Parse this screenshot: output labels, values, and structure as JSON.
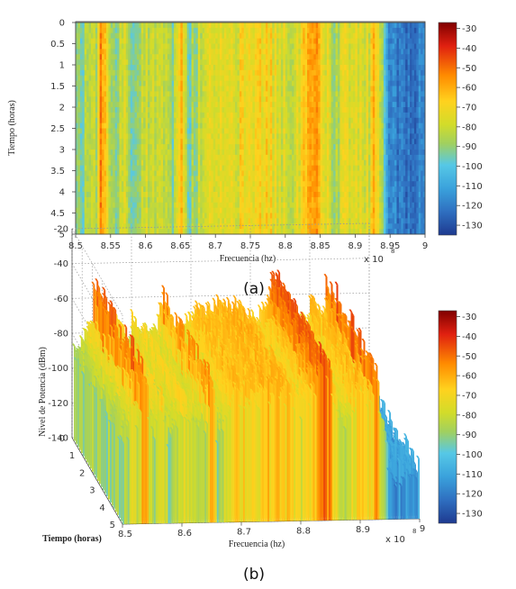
{
  "chart_data": [
    {
      "type": "heatmap",
      "panel_label": "(a)",
      "xlabel": "Frecuencia (hz)",
      "ylabel": "Tiempo (horas)",
      "x_multiplier": "x 10",
      "x_exponent": "8",
      "xlim": [
        8.5,
        9.0
      ],
      "ylim": [
        0,
        5
      ],
      "y_reversed": true,
      "x_ticks": [
        "8.5",
        "8.55",
        "8.6",
        "8.65",
        "8.7",
        "8.75",
        "8.8",
        "8.85",
        "8.9",
        "8.95",
        "9"
      ],
      "y_ticks": [
        "0",
        "0.5",
        "1",
        "1.5",
        "2",
        "2.5",
        "3",
        "3.5",
        "4",
        "4.5",
        "5"
      ],
      "colorbar": {
        "range": [
          -135,
          -27
        ],
        "ticks": [
          "-30",
          "-40",
          "-50",
          "-60",
          "-70",
          "-80",
          "-90",
          "-100",
          "-110",
          "-120",
          "-130"
        ]
      },
      "profile_x": [
        8.5,
        8.51,
        8.52,
        8.53,
        8.535,
        8.54,
        8.55,
        8.56,
        8.57,
        8.58,
        8.6,
        8.62,
        8.64,
        8.65,
        8.66,
        8.68,
        8.7,
        8.72,
        8.75,
        8.78,
        8.8,
        8.82,
        8.83,
        8.84,
        8.85,
        8.86,
        8.87,
        8.88,
        8.9,
        8.92,
        8.925,
        8.93,
        8.94,
        8.95,
        8.97,
        9.0
      ],
      "profile_dbm": [
        -95,
        -90,
        -80,
        -85,
        -55,
        -60,
        -95,
        -85,
        -75,
        -100,
        -78,
        -85,
        -88,
        -60,
        -95,
        -80,
        -72,
        -75,
        -70,
        -72,
        -80,
        -75,
        -60,
        -55,
        -62,
        -75,
        -90,
        -80,
        -72,
        -78,
        -55,
        -70,
        -95,
        -118,
        -120,
        -118
      ]
    },
    {
      "type": "surface",
      "panel_label": "(b)",
      "xlabel": "Frecuencia (hz)",
      "ylabel": "Tiempo (horas)",
      "zlabel": "Nivel de Potencia (dBm)",
      "x_multiplier": "x 10",
      "x_exponent": "8",
      "x_ticks": [
        "8.5",
        "8.6",
        "8.7",
        "8.8",
        "8.9",
        "9"
      ],
      "y_ticks": [
        "0",
        "1",
        "2",
        "3",
        "4",
        "5"
      ],
      "z_ticks": [
        "-20",
        "-40",
        "-60",
        "-80",
        "-100",
        "-120",
        "-140"
      ],
      "zlim": [
        -140,
        -20
      ],
      "colorbar": {
        "range": [
          -135,
          -27
        ],
        "ticks": [
          "-30",
          "-40",
          "-50",
          "-60",
          "-70",
          "-80",
          "-90",
          "-100",
          "-110",
          "-120",
          "-130"
        ]
      }
    }
  ]
}
